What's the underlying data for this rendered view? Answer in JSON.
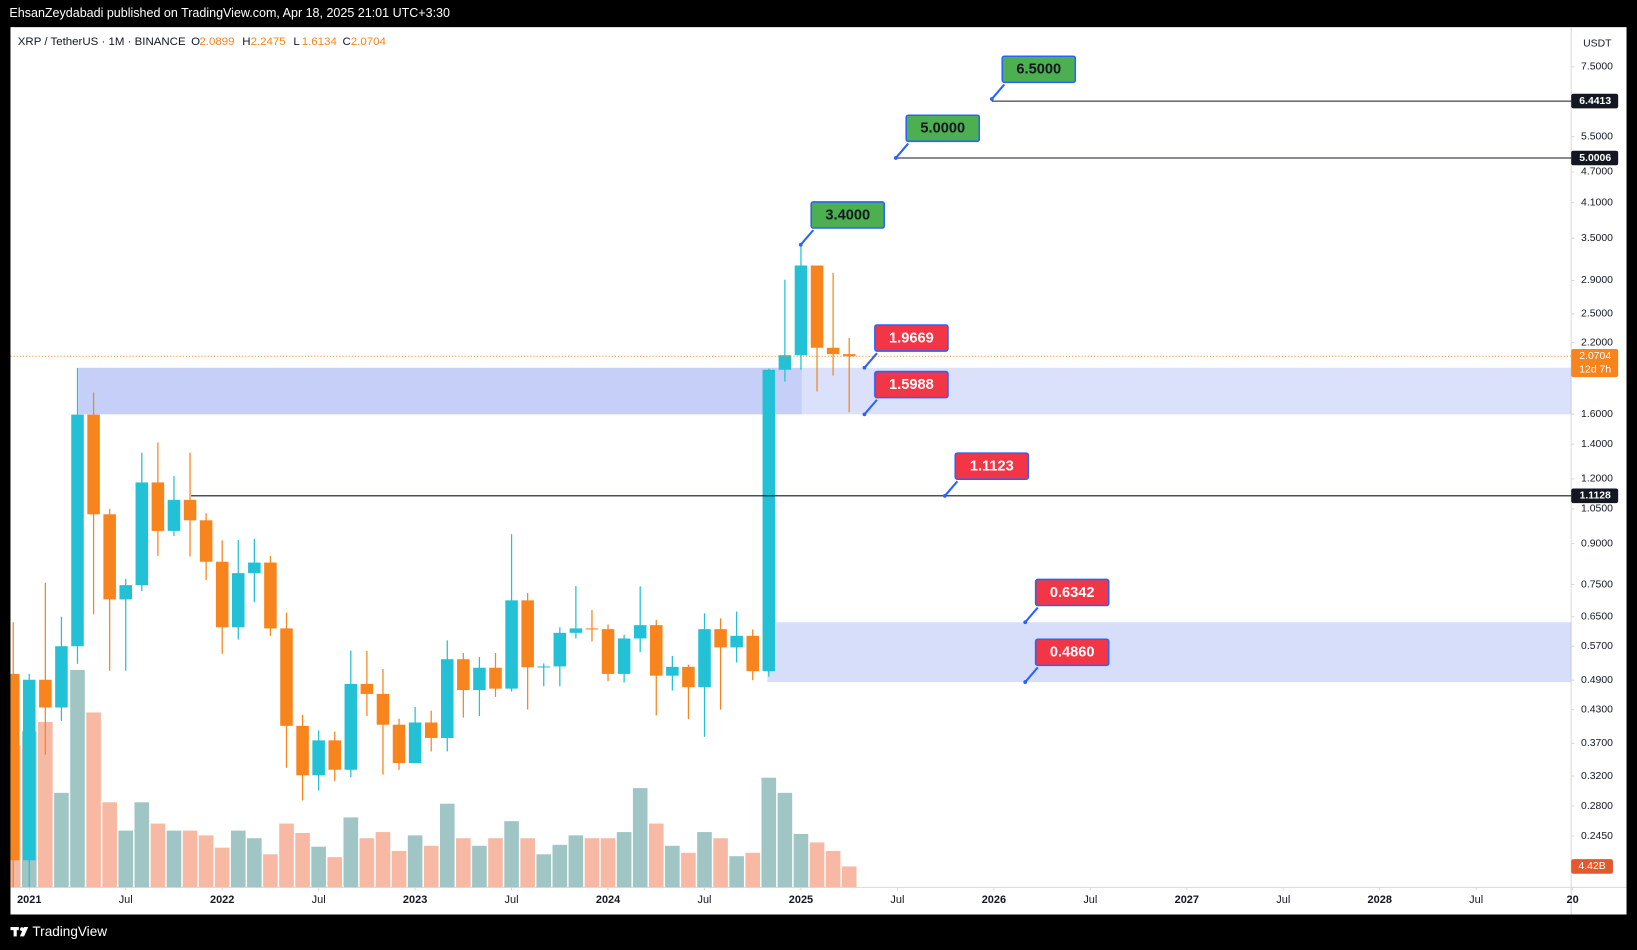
{
  "page": {
    "published": "EhsanZeydabadi published on TradingView.com, Apr 18, 2025 21:01 UTC+3:30",
    "brand": "TradingView"
  },
  "chart_data": {
    "type": "candlestick",
    "title": "XRP / TetherUS · 1M · BINANCE",
    "ohlc_labels": [
      "O",
      "H",
      "L",
      "C"
    ],
    "currency": "USDT",
    "countdown": "12d 7h",
    "log_scale": true,
    "grid": false,
    "up_color": "#22c1d6",
    "down_color": "#f7841c",
    "up_volume_color": "#9fc6c5",
    "down_volume_color": "#f7b9a3",
    "x": [
      "2020-12",
      "2021-01",
      "2021-02",
      "2021-03",
      "2021-04",
      "2021-05",
      "2021-06",
      "2021-07",
      "2021-08",
      "2021-09",
      "2021-10",
      "2021-11",
      "2021-12",
      "2022-01",
      "2022-02",
      "2022-03",
      "2022-04",
      "2022-05",
      "2022-06",
      "2022-07",
      "2022-08",
      "2022-09",
      "2022-10",
      "2022-11",
      "2022-12",
      "2023-01",
      "2023-02",
      "2023-03",
      "2023-04",
      "2023-05",
      "2023-06",
      "2023-07",
      "2023-08",
      "2023-09",
      "2023-10",
      "2023-11",
      "2023-12",
      "2024-01",
      "2024-02",
      "2024-03",
      "2024-04",
      "2024-05",
      "2024-06",
      "2024-07",
      "2024-08",
      "2024-09",
      "2024-10",
      "2024-11",
      "2024-12",
      "2025-01",
      "2025-02",
      "2025-03",
      "2025-04"
    ],
    "open": [
      0.504,
      0.22,
      0.491,
      0.434,
      0.57,
      1.597,
      1.025,
      0.702,
      0.748,
      1.181,
      0.952,
      1.093,
      0.998,
      0.83,
      0.62,
      0.789,
      0.827,
      0.617,
      0.4,
      0.321,
      0.375,
      0.329,
      0.482,
      0.461,
      0.402,
      0.339,
      0.406,
      0.379,
      0.538,
      0.469,
      0.518,
      0.472,
      0.699,
      0.519,
      0.521,
      0.605,
      0.617,
      0.615,
      0.504,
      0.59,
      0.626,
      0.5,
      0.52,
      0.475,
      0.615,
      0.567,
      0.597,
      0.51,
      1.95,
      2.08,
      3.1,
      2.15,
      2.0899
    ],
    "high": [
      0.634,
      0.504,
      0.756,
      0.65,
      1.966,
      1.762,
      1.05,
      0.769,
      1.348,
      1.411,
      1.215,
      1.349,
      1.03,
      0.913,
      0.914,
      0.919,
      0.851,
      0.662,
      0.42,
      0.392,
      0.39,
      0.559,
      0.558,
      0.515,
      0.413,
      0.435,
      0.428,
      0.585,
      0.553,
      0.543,
      0.553,
      0.938,
      0.722,
      0.528,
      0.62,
      0.745,
      0.67,
      0.628,
      0.6,
      0.744,
      0.641,
      0.546,
      0.525,
      0.66,
      0.645,
      0.665,
      0.614,
      1.96,
      2.91,
      3.4,
      3.1,
      3.0,
      2.2475
    ],
    "low": [
      0.172,
      0.169,
      0.352,
      0.409,
      0.527,
      0.657,
      0.511,
      0.511,
      0.728,
      0.852,
      0.931,
      0.85,
      0.765,
      0.551,
      0.587,
      0.693,
      0.597,
      0.332,
      0.287,
      0.3,
      0.313,
      0.318,
      0.418,
      0.322,
      0.329,
      0.339,
      0.357,
      0.357,
      0.415,
      0.418,
      0.455,
      0.466,
      0.43,
      0.477,
      0.477,
      0.59,
      0.582,
      0.488,
      0.485,
      0.555,
      0.419,
      0.468,
      0.412,
      0.381,
      0.43,
      0.53,
      0.49,
      0.498,
      1.85,
      1.95,
      1.77,
      1.9,
      1.6134
    ],
    "close": [
      0.22,
      0.491,
      0.434,
      0.57,
      1.597,
      1.025,
      0.702,
      0.748,
      1.181,
      0.952,
      1.093,
      0.998,
      0.83,
      0.62,
      0.789,
      0.827,
      0.617,
      0.4,
      0.321,
      0.375,
      0.329,
      0.482,
      0.461,
      0.402,
      0.339,
      0.406,
      0.379,
      0.538,
      0.469,
      0.518,
      0.472,
      0.699,
      0.519,
      0.521,
      0.605,
      0.617,
      0.615,
      0.504,
      0.59,
      0.626,
      0.5,
      0.52,
      0.475,
      0.615,
      0.567,
      0.597,
      0.51,
      1.95,
      2.08,
      3.1,
      2.15,
      2.09,
      2.0704
    ],
    "volume": {
      "values": [
        30000000000,
        33000000000,
        35000000000,
        20000000000,
        46000000000,
        37000000000,
        18000000000,
        12000000000,
        18000000000,
        13500000000,
        12000000000,
        12000000000,
        11000000000,
        8400000000,
        12000000000,
        10400000000,
        7000000000,
        13500000000,
        11500000000,
        8600000000,
        6400000000,
        14800000000,
        10400000000,
        11700000000,
        7700000000,
        11000000000,
        8800000000,
        17700000000,
        10400000000,
        8800000000,
        10400000000,
        14000000000,
        10400000000,
        7000000000,
        9000000000,
        11000000000,
        10400000000,
        10400000000,
        11700000000,
        21000000000,
        13500000000,
        8800000000,
        7300000000,
        11700000000,
        10400000000,
        6600000000,
        7300000000,
        23200000000,
        20000000000,
        11300000000,
        9500000000,
        7700000000,
        4420000000
      ],
      "value_labels": [
        null,
        null,
        null,
        null,
        null,
        null,
        null,
        null,
        null,
        null,
        null,
        null,
        null,
        null,
        null,
        null,
        null,
        null,
        null,
        null,
        null,
        null,
        null,
        null,
        null,
        null,
        null,
        null,
        null,
        null,
        null,
        null,
        null,
        null,
        null,
        null,
        null,
        null,
        null,
        null,
        null,
        null,
        null,
        null,
        null,
        null,
        null,
        null,
        null,
        null,
        null,
        null,
        "4.42B"
      ],
      "ylim": [
        0,
        182000000000
      ]
    },
    "xlim": [
      "2020-12",
      "2029-01"
    ],
    "xticks": [
      {
        "value": "2021-01",
        "label": "2021"
      },
      {
        "value": "2021-07",
        "label": "Jul"
      },
      {
        "value": "2022-01",
        "label": "2022"
      },
      {
        "value": "2022-07",
        "label": "Jul"
      },
      {
        "value": "2023-01",
        "label": "2023"
      },
      {
        "value": "2023-07",
        "label": "Jul"
      },
      {
        "value": "2024-01",
        "label": "2024"
      },
      {
        "value": "2024-07",
        "label": "Jul"
      },
      {
        "value": "2025-01",
        "label": "2025"
      },
      {
        "value": "2025-07",
        "label": "Jul"
      },
      {
        "value": "2026-01",
        "label": "2026"
      },
      {
        "value": "2026-07",
        "label": "Jul"
      },
      {
        "value": "2027-01",
        "label": "2027"
      },
      {
        "value": "2027-07",
        "label": "Jul"
      },
      {
        "value": "2028-01",
        "label": "2028"
      },
      {
        "value": "2028-07",
        "label": "Jul"
      },
      {
        "value": "2029-01",
        "label": "20"
      }
    ],
    "ylim": [
      0.195,
      8.95
    ],
    "yticks": [
      {
        "value": 7.5,
        "label": "7.5000"
      },
      {
        "value": 5.5,
        "label": "5.5000"
      },
      {
        "value": 4.7,
        "label": "4.7000"
      },
      {
        "value": 4.1,
        "label": "4.1000"
      },
      {
        "value": 3.5,
        "label": "3.5000"
      },
      {
        "value": 2.9,
        "label": "2.9000"
      },
      {
        "value": 2.5,
        "label": "2.5000"
      },
      {
        "value": 2.2,
        "label": "2.2000"
      },
      {
        "value": 1.6,
        "label": "1.6000"
      },
      {
        "value": 1.4,
        "label": "1.4000"
      },
      {
        "value": 1.2,
        "label": "1.2000"
      },
      {
        "value": 1.05,
        "label": "1.0500"
      },
      {
        "value": 0.9,
        "label": "0.9000"
      },
      {
        "value": 0.75,
        "label": "0.7500"
      },
      {
        "value": 0.65,
        "label": "0.6500"
      },
      {
        "value": 0.57,
        "label": "0.5700"
      },
      {
        "value": 0.49,
        "label": "0.4900"
      },
      {
        "value": 0.43,
        "label": "0.4300"
      },
      {
        "value": 0.37,
        "label": "0.3700"
      },
      {
        "value": 0.32,
        "label": "0.3200"
      },
      {
        "value": 0.28,
        "label": "0.2800"
      },
      {
        "value": 0.245,
        "label": "0.2450"
      }
    ],
    "price_lines": [
      6.4413,
      5.0006,
      1.1128
    ],
    "annotations": [
      {
        "text": "6.5000",
        "price": 6.5,
        "color": "#4caf50"
      },
      {
        "text": "5.0000",
        "price": 5.0,
        "color": "#4caf50"
      },
      {
        "text": "3.4000",
        "price": 3.4,
        "color": "#4caf50"
      },
      {
        "text": "1.9669",
        "price": 1.9669,
        "color": "#f23645"
      },
      {
        "text": "1.5988",
        "price": 1.5988,
        "color": "#f23645"
      },
      {
        "text": "1.1123",
        "price": 1.1123,
        "color": "#f23645"
      },
      {
        "text": "0.6342",
        "price": 0.6342,
        "color": "#f23645"
      },
      {
        "text": "0.4860",
        "price": 0.486,
        "color": "#f23645"
      }
    ]
  }
}
